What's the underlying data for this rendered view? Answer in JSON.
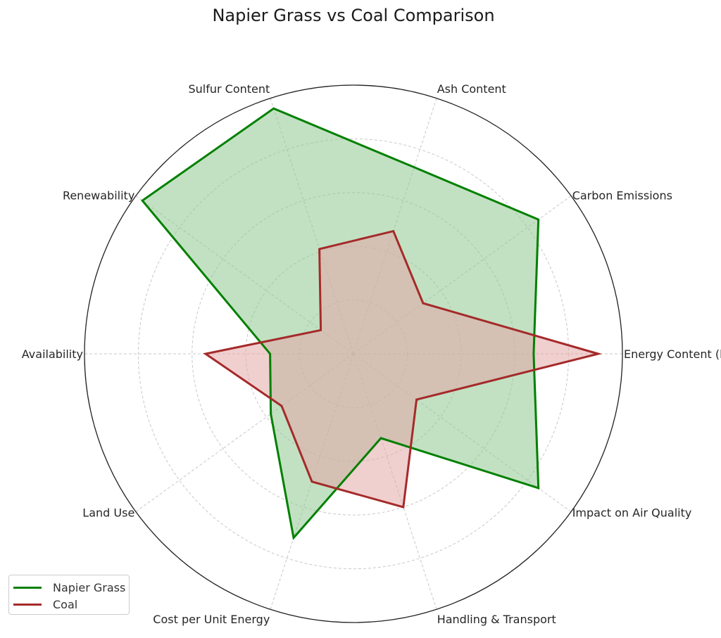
{
  "chart_data": {
    "type": "radar",
    "title": "Napier Grass vs Coal Comparison",
    "categories": [
      "Energy Content (kcal/kg)",
      "Carbon Emissions",
      "Ash Content",
      "Sulfur Content",
      "Renewability",
      "Availability",
      "Land Use",
      "Cost per Unit Energy",
      "Handling & Transport",
      "Impact on Air Quality"
    ],
    "rlim": [
      0,
      10
    ],
    "grid": true,
    "legend_position": "lower-left",
    "series": [
      {
        "name": "Napier Grass",
        "color": "#008000",
        "fill": "#8fc98f",
        "values": [
          6.7,
          8.5,
          7.3,
          9.6,
          9.7,
          3.1,
          3.8,
          7.2,
          3.3,
          8.5
        ]
      },
      {
        "name": "Coal",
        "color": "#a52a2a",
        "fill": "#e4a8a8",
        "values": [
          9.1,
          3.2,
          4.8,
          4.1,
          1.5,
          5.5,
          3.3,
          5.0,
          6.0,
          2.9
        ]
      }
    ]
  }
}
